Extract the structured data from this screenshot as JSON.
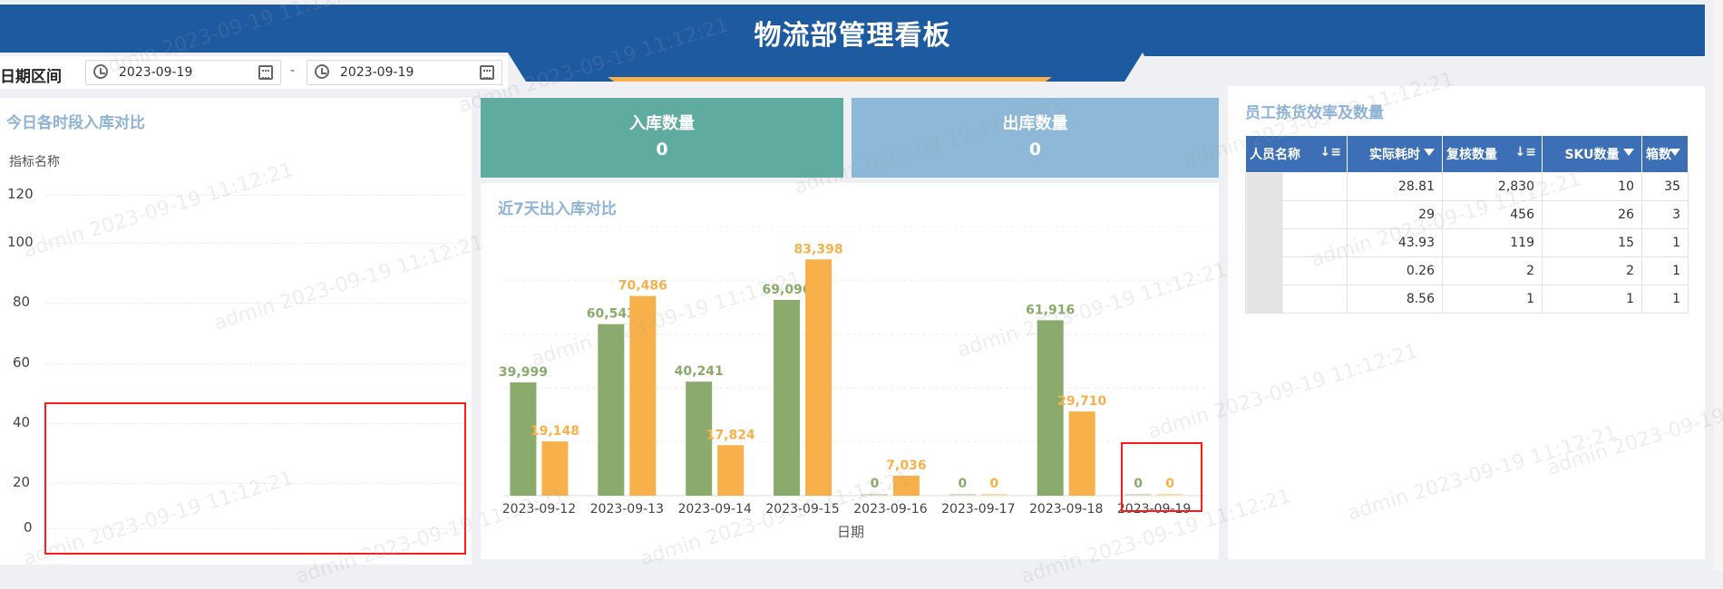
{
  "header": {
    "title": "物流部管理看板"
  },
  "date_filter": {
    "label": "日期区间",
    "start": "2023-09-19",
    "end": "2023-09-19",
    "separator": "-"
  },
  "left_panel": {
    "title": "今日各时段入库对比",
    "legend_label": "指标名称",
    "y_ticks": [
      "120",
      "100",
      "80",
      "60",
      "40",
      "20",
      "0"
    ]
  },
  "kpis": {
    "inbound": {
      "label": "入库数量",
      "value": "0",
      "color": "#5fab9f"
    },
    "outbound": {
      "label": "出库数量",
      "value": "0",
      "color": "#8db8d8"
    }
  },
  "chart_data": {
    "type": "bar",
    "title": "近7天出入库对比",
    "xlabel": "日期",
    "ylabel": "",
    "categories": [
      "2023-09-12",
      "2023-09-13",
      "2023-09-14",
      "2023-09-15",
      "2023-09-16",
      "2023-09-17",
      "2023-09-18",
      "2023-09-19"
    ],
    "series": [
      {
        "values": [
          39999,
          60543,
          40241,
          69096,
          0,
          0,
          61916,
          0
        ],
        "labels": [
          "39,999",
          "60,543",
          "40,241",
          "69,096",
          "0",
          "0",
          "61,916",
          "0"
        ],
        "color": "#8aab6b"
      },
      {
        "values": [
          19148,
          70486,
          17824,
          83398,
          7036,
          0,
          29710,
          0
        ],
        "labels": [
          "19,148",
          "70,486",
          "17,824",
          "83,398",
          "7,036",
          "0",
          "29,710",
          "0"
        ],
        "color": "#f8b04a"
      }
    ],
    "ylim": [
      0,
      95000
    ],
    "grid": true
  },
  "staff_table": {
    "title": "员工拣货效率及数量",
    "columns": [
      "人员名称",
      "实际耗时",
      "复核数量",
      "SKU数量",
      "箱数"
    ],
    "rows": [
      {
        "duration": "28.81",
        "review": "2,830",
        "sku": "10",
        "boxes": "35"
      },
      {
        "duration": "29",
        "review": "456",
        "sku": "26",
        "boxes": "3"
      },
      {
        "duration": "43.93",
        "review": "119",
        "sku": "15",
        "boxes": "1"
      },
      {
        "duration": "0.26",
        "review": "2",
        "sku": "2",
        "boxes": "1"
      },
      {
        "duration": "8.56",
        "review": "1",
        "sku": "1",
        "boxes": "1"
      }
    ]
  },
  "watermark": {
    "text": "admin 2023-09-19 11:12:21"
  },
  "colors": {
    "header": "#1e5aa0",
    "accent": "#f8b04a",
    "table_header": "#3c6fb5"
  }
}
